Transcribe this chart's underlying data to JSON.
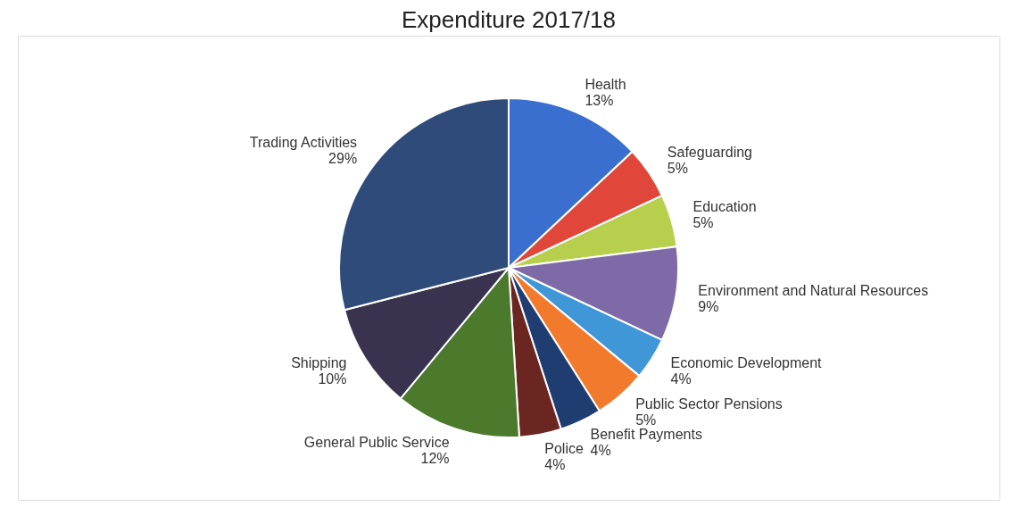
{
  "chart_data": {
    "type": "pie",
    "title": "Expenditure 2017/18",
    "categories": [
      "Health",
      "Safeguarding",
      "Education",
      "Environment and Natural Resources",
      "Economic Development",
      "Public Sector Pensions",
      "Benefit Payments",
      "Police",
      "General Public Service",
      "Shipping",
      "Trading Activities"
    ],
    "values": [
      13,
      5,
      5,
      9,
      4,
      5,
      4,
      4,
      12,
      10,
      29
    ],
    "value_labels": [
      "13%",
      "5%",
      "5%",
      "9%",
      "4%",
      "5%",
      "4%",
      "4%",
      "12%",
      "10%",
      "29%"
    ],
    "colors": [
      "#3b6fcf",
      "#e0463a",
      "#b6cf4c",
      "#7f6aa8",
      "#3f97d8",
      "#f27a2c",
      "#203d72",
      "#6b2622",
      "#4b7a2c",
      "#3a3350",
      "#2e4b7a"
    ],
    "legend": false
  }
}
